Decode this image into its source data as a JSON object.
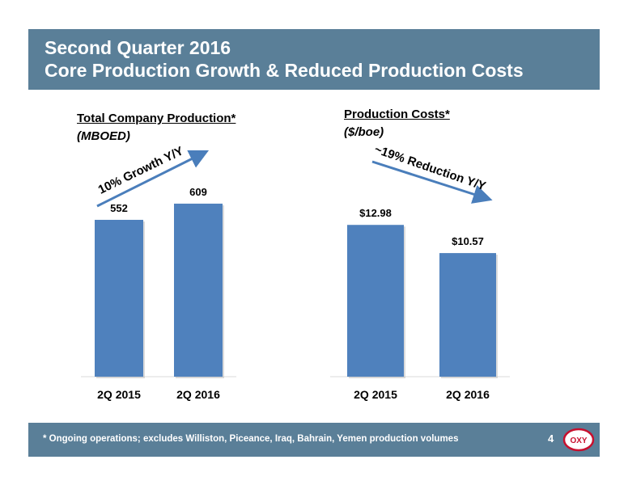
{
  "header": {
    "title_line1": "Second Quarter 2016",
    "title_line2": "Core Production Growth & Reduced Production Costs"
  },
  "colors": {
    "header_bg": "#5a7f98",
    "bar": "#4f81bd",
    "arrow": "#4a7ebb"
  },
  "footer": {
    "note": "* Ongoing operations; excludes Williston, Piceance, Iraq, Bahrain, Yemen production volumes",
    "page_number": "4",
    "logo_text": "OXY"
  },
  "chart_data": [
    {
      "type": "bar",
      "title": "Total Company Production*",
      "subtitle": "(MBOED)",
      "categories": [
        "2Q 2015",
        "2Q 2016"
      ],
      "values": [
        552,
        609
      ],
      "value_labels": [
        "552",
        "609"
      ],
      "annotation": "10% Growth Y/Y",
      "annotation_direction": "up",
      "ylim": [
        0,
        660
      ],
      "grid": false,
      "legend": "none"
    },
    {
      "type": "bar",
      "title": "Production Costs*",
      "subtitle": "($/boe)",
      "categories": [
        "2Q 2015",
        "2Q 2016"
      ],
      "values": [
        12.98,
        10.57
      ],
      "value_labels": [
        "$12.98",
        "$10.57"
      ],
      "annotation": "~19% Reduction Y/Y",
      "annotation_direction": "down",
      "ylim": [
        0,
        15
      ],
      "grid": false,
      "legend": "none"
    }
  ]
}
